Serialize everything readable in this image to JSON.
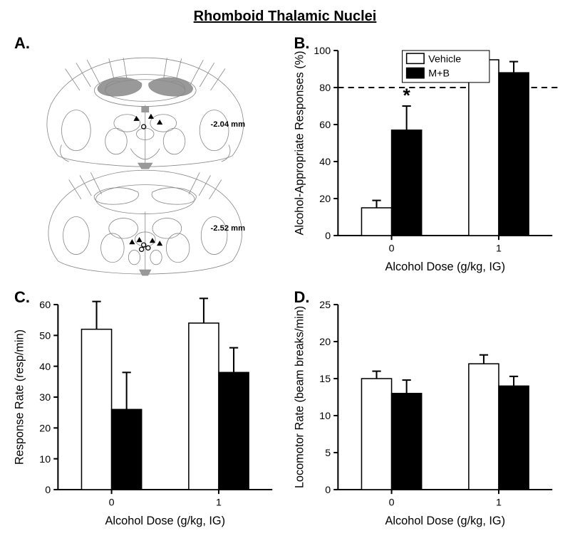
{
  "title": "Rhomboid Thalamic Nuclei",
  "panels": {
    "A": {
      "label": "A.",
      "coord1": "-2.04 mm",
      "coord2": "-2.52 mm"
    },
    "B": {
      "label": "B.",
      "type": "bar",
      "ylabel": "Alcohol-Appropriate Responses (%)",
      "xlabel": "Alcohol Dose (g/kg, IG)",
      "ylim": [
        0,
        100
      ],
      "ytick_step": 20,
      "categories": [
        "0",
        "1"
      ],
      "series": {
        "Vehicle": {
          "color": "#ffffff",
          "values": [
            15,
            95
          ],
          "errors": [
            4,
            3
          ]
        },
        "MB": {
          "color": "#000000",
          "values": [
            57,
            88
          ],
          "errors": [
            13,
            6
          ]
        }
      },
      "legend": {
        "Vehicle": "Vehicle",
        "MB": "M+B"
      },
      "reference_line": 80,
      "significance": {
        "group": 0,
        "series": "MB",
        "marker": "*"
      },
      "bar_width": 0.35
    },
    "C": {
      "label": "C.",
      "type": "bar",
      "ylabel": "Response Rate (resp/min)",
      "xlabel": "Alcohol Dose (g/kg, IG)",
      "ylim": [
        0,
        60
      ],
      "ytick_step": 10,
      "categories": [
        "0",
        "1"
      ],
      "series": {
        "Vehicle": {
          "color": "#ffffff",
          "values": [
            52,
            54
          ],
          "errors": [
            9,
            8
          ]
        },
        "MB": {
          "color": "#000000",
          "values": [
            26,
            38
          ],
          "errors": [
            12,
            8
          ]
        }
      },
      "bar_width": 0.35
    },
    "D": {
      "label": "D.",
      "type": "bar",
      "ylabel": "Locomotor Rate (beam breaks/min)",
      "xlabel": "Alcohol Dose (g/kg, IG)",
      "ylim": [
        0,
        25
      ],
      "ytick_step": 5,
      "categories": [
        "0",
        "1"
      ],
      "series": {
        "Vehicle": {
          "color": "#ffffff",
          "values": [
            15,
            17
          ],
          "errors": [
            1,
            1.2
          ]
        },
        "MB": {
          "color": "#000000",
          "values": [
            13,
            14
          ],
          "errors": [
            1.8,
            1.3
          ]
        }
      },
      "bar_width": 0.35
    }
  }
}
